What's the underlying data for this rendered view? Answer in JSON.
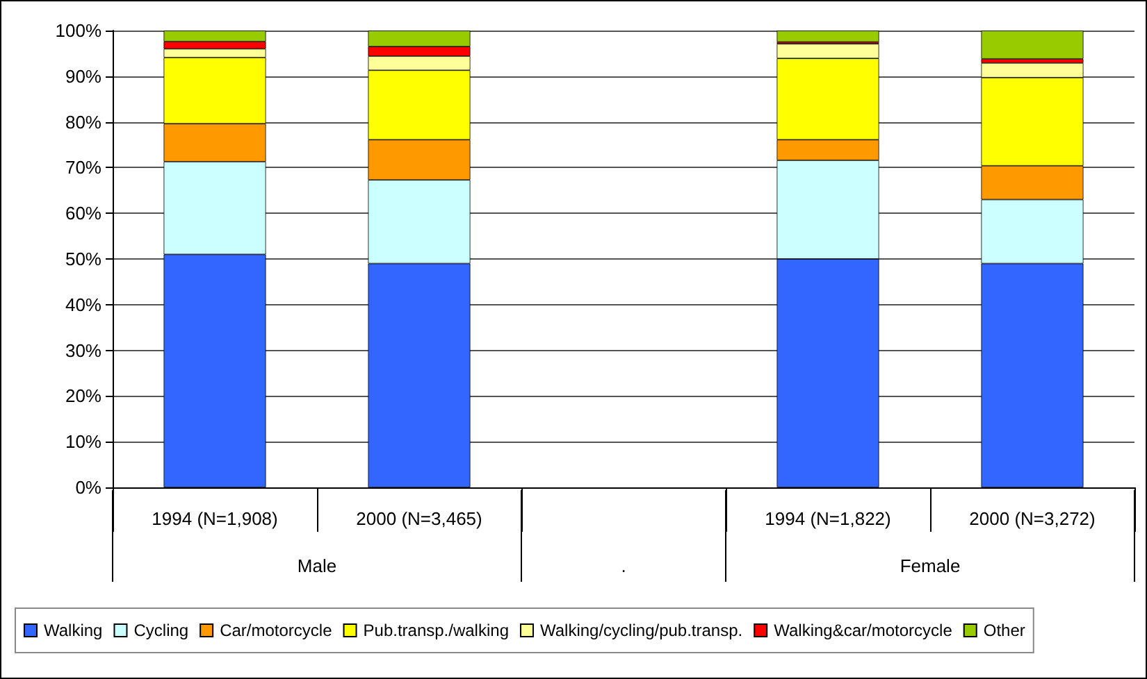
{
  "chart_data": {
    "type": "bar",
    "stacked": true,
    "categories": [
      "1994 (N=1,908)",
      "2000 (N=3,465)",
      null,
      "1994 (N=1,822)",
      "2000 (N=3,272)"
    ],
    "series": [
      {
        "name": "Walking",
        "color": "#3366ff",
        "values": [
          51,
          49,
          null,
          50,
          49
        ]
      },
      {
        "name": "Cycling",
        "color": "#ccffff",
        "values": [
          20.3,
          18.3,
          null,
          21.6,
          14
        ]
      },
      {
        "name": "Car/motorcycle",
        "color": "#ff9900",
        "values": [
          8.3,
          8.8,
          null,
          4.5,
          7.4
        ]
      },
      {
        "name": "Pub.transp./walking",
        "color": "#ffff00",
        "values": [
          14.5,
          15.2,
          null,
          17.8,
          19.3
        ]
      },
      {
        "name": "Walking/cycling/pub.transp.",
        "color": "#ffff99",
        "values": [
          1.9,
          3.1,
          null,
          3.2,
          3.2
        ]
      },
      {
        "name": "Walking&car/motorcycle",
        "color": "#ff0000",
        "values": [
          1.6,
          2.1,
          null,
          0.4,
          0.9
        ]
      },
      {
        "name": "Other",
        "color": "#99cc00",
        "values": [
          2.4,
          3.5,
          null,
          2.5,
          6.2
        ]
      }
    ],
    "ylim": [
      0,
      100
    ],
    "yticks": [
      {
        "value": 0,
        "label": "0%"
      },
      {
        "value": 10,
        "label": "10%"
      },
      {
        "value": 20,
        "label": "20%"
      },
      {
        "value": 30,
        "label": "30%"
      },
      {
        "value": 40,
        "label": "40%"
      },
      {
        "value": 50,
        "label": "50%"
      },
      {
        "value": 60,
        "label": "60%"
      },
      {
        "value": 70,
        "label": "70%"
      },
      {
        "value": 80,
        "label": "80%"
      },
      {
        "value": 90,
        "label": "90%"
      },
      {
        "value": 100,
        "label": "100%"
      }
    ],
    "annotations": [
      "Male",
      ".",
      "Female"
    ],
    "grid": "y",
    "legend": "bottom"
  }
}
